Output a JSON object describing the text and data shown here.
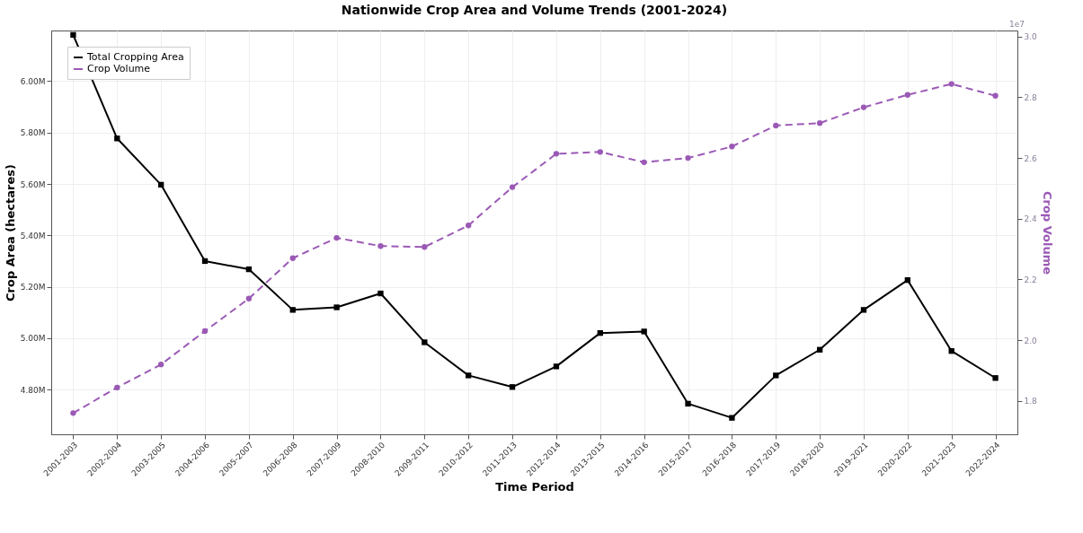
{
  "chart_data": {
    "type": "line",
    "title": "Nationwide Crop Area and Volume Trends (2001-2024)",
    "xlabel": "Time Period",
    "ylabel": "Crop Area (hectares)",
    "y2label": "Crop Volume",
    "categories": [
      "2001-2003",
      "2002-2004",
      "2003-2005",
      "2004-2006",
      "2005-2007",
      "2006-2008",
      "2007-2009",
      "2008-2010",
      "2009-2011",
      "2010-2012",
      "2011-2013",
      "2012-2014",
      "2013-2015",
      "2014-2016",
      "2015-2017",
      "2016-2018",
      "2017-2019",
      "2018-2020",
      "2019-2021",
      "2020-2022",
      "2021-2023",
      "2022-2024"
    ],
    "series": [
      {
        "name": "Total Cropping Area",
        "color": "#000000",
        "marker": "square",
        "line_style": "solid",
        "values": [
          6180000,
          5777000,
          5597000,
          5300000,
          5268000,
          5110000,
          5120000,
          5174000,
          4984000,
          4855000,
          4810000,
          4890000,
          5020000,
          5026000,
          4745000,
          4690000,
          4855000,
          4955000,
          5110000,
          5226000,
          4950000,
          4845000
        ]
      },
      {
        "name": "Crop Volume",
        "color": "#9b59b6",
        "marker": "circle",
        "line_style": "dashed",
        "axis": "y2",
        "values": [
          1.76,
          1.844,
          1.92,
          2.03,
          2.137,
          2.27,
          2.337,
          2.31,
          2.307,
          2.378,
          2.504,
          2.614,
          2.62,
          2.586,
          2.6,
          2.638,
          2.707,
          2.715,
          2.767,
          2.808,
          2.844,
          2.805
        ]
      }
    ],
    "ylim": [
      4626000,
      6197000
    ],
    "yticks": [
      {
        "value": 4800000,
        "label": "4.80M"
      },
      {
        "value": 5000000,
        "label": "5.00M"
      },
      {
        "value": 5200000,
        "label": "5.20M"
      },
      {
        "value": 5400000,
        "label": "5.40M"
      },
      {
        "value": 5600000,
        "label": "5.60M"
      },
      {
        "value": 5800000,
        "label": "5.80M"
      },
      {
        "value": 6000000,
        "label": "6.00M"
      }
    ],
    "y2lim": [
      1.69,
      3.02
    ],
    "y2ticks": [
      {
        "value": 1.8,
        "label": "1.8"
      },
      {
        "value": 2.0,
        "label": "2.0"
      },
      {
        "value": 2.2,
        "label": "2.2"
      },
      {
        "value": 2.4,
        "label": "2.4"
      },
      {
        "value": 2.6,
        "label": "2.6"
      },
      {
        "value": 2.8,
        "label": "2.8"
      },
      {
        "value": 3.0,
        "label": "3.0"
      }
    ],
    "annotations": [
      "1e7"
    ],
    "grid": true,
    "legend": "top left"
  }
}
